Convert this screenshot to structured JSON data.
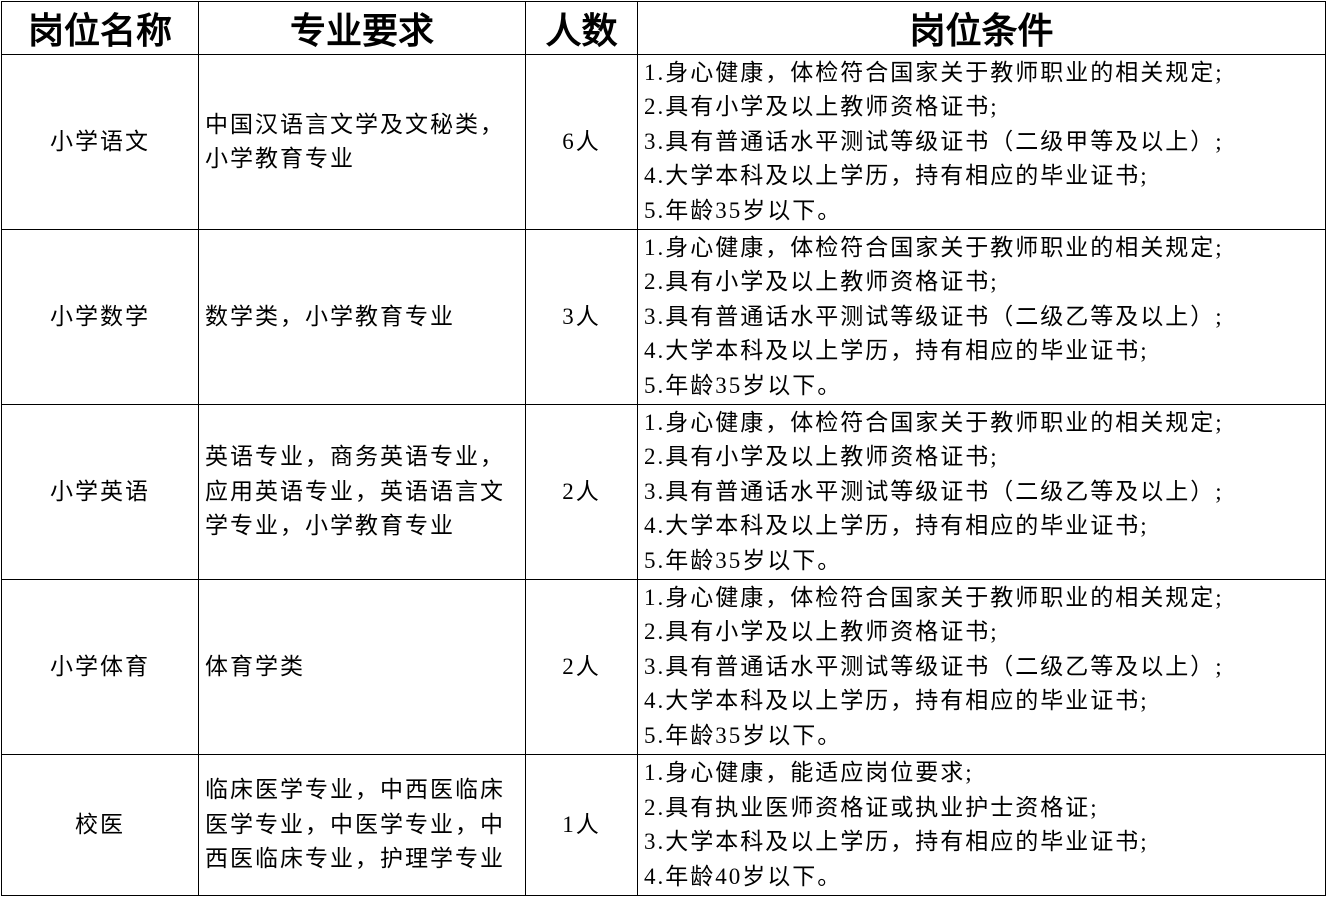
{
  "headers": [
    "岗位名称",
    "专业要求",
    "人数",
    "岗位条件"
  ],
  "rows": [
    {
      "position": "小学语文",
      "major": "中国汉语言文学及文秘类，小学教育专业",
      "count": "6人",
      "conditions": [
        "1.身心健康，体检符合国家关于教师职业的相关规定;",
        "2.具有小学及以上教师资格证书;",
        "3.具有普通话水平测试等级证书（二级甲等及以上）;",
        "4.大学本科及以上学历，持有相应的毕业证书;",
        "5.年龄35岁以下。"
      ]
    },
    {
      "position": "小学数学",
      "major": "数学类，小学教育专业",
      "count": "3人",
      "conditions": [
        "1.身心健康，体检符合国家关于教师职业的相关规定;",
        "2.具有小学及以上教师资格证书;",
        "3.具有普通话水平测试等级证书（二级乙等及以上）;",
        "4.大学本科及以上学历，持有相应的毕业证书;",
        "5.年龄35岁以下。"
      ]
    },
    {
      "position": "小学英语",
      "major": "英语专业，商务英语专业，应用英语专业，英语语言文学专业，小学教育专业",
      "count": "2人",
      "conditions": [
        "1.身心健康，体检符合国家关于教师职业的相关规定;",
        "2.具有小学及以上教师资格证书;",
        "3.具有普通话水平测试等级证书（二级乙等及以上）;",
        "4.大学本科及以上学历，持有相应的毕业证书;",
        "5.年龄35岁以下。"
      ]
    },
    {
      "position": "小学体育",
      "major": "体育学类",
      "count": "2人",
      "conditions": [
        "1.身心健康，体检符合国家关于教师职业的相关规定;",
        "2.具有小学及以上教师资格证书;",
        "3.具有普通话水平测试等级证书（二级乙等及以上）;",
        "4.大学本科及以上学历，持有相应的毕业证书;",
        "5.年龄35岁以下。"
      ]
    },
    {
      "position": "校医",
      "major": "临床医学专业，中西医临床医学专业，中医学专业，中西医临床专业，护理学专业",
      "count": "1人",
      "conditions": [
        "1.身心健康，能适应岗位要求;",
        "2.具有执业医师资格证或执业护士资格证;",
        "3.大学本科及以上学历，持有相应的毕业证书;",
        "4.年龄40岁以下。"
      ]
    }
  ]
}
